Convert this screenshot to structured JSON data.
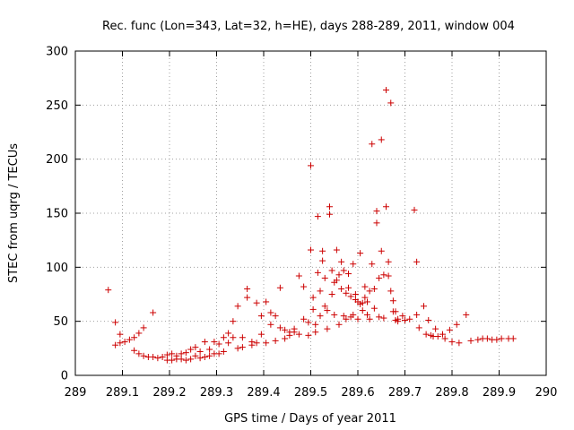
{
  "chart_data": {
    "type": "scatter",
    "title": "Rec. func (Lon=343, Lat=32, h=HE), days 288-289, 2011, window 004",
    "xlabel": "GPS time / Days of year 2011",
    "ylabel": "STEC from uqrg / TECUs",
    "xlim": [
      289,
      290
    ],
    "ylim": [
      0,
      300
    ],
    "xticks": [
      "289",
      "289.1",
      "289.2",
      "289.3",
      "289.4",
      "289.5",
      "289.6",
      "289.7",
      "289.8",
      "289.9",
      "290"
    ],
    "yticks": [
      "0",
      "50",
      "100",
      "150",
      "200",
      "250",
      "300"
    ],
    "grid": true,
    "marker": "+",
    "color": "#cc0000",
    "points": [
      [
        289.07,
        79
      ],
      [
        289.085,
        49
      ],
      [
        289.085,
        28
      ],
      [
        289.095,
        38
      ],
      [
        289.095,
        30
      ],
      [
        289.105,
        31
      ],
      [
        289.115,
        33
      ],
      [
        289.125,
        35
      ],
      [
        289.125,
        23
      ],
      [
        289.135,
        39
      ],
      [
        289.135,
        20
      ],
      [
        289.145,
        44
      ],
      [
        289.145,
        18
      ],
      [
        289.155,
        17
      ],
      [
        289.165,
        58
      ],
      [
        289.165,
        17
      ],
      [
        289.175,
        16
      ],
      [
        289.185,
        17
      ],
      [
        289.195,
        19
      ],
      [
        289.195,
        14
      ],
      [
        289.205,
        20
      ],
      [
        289.205,
        14
      ],
      [
        289.215,
        18
      ],
      [
        289.215,
        15
      ],
      [
        289.225,
        20
      ],
      [
        289.225,
        15
      ],
      [
        289.235,
        21
      ],
      [
        289.235,
        14
      ],
      [
        289.245,
        24
      ],
      [
        289.245,
        15
      ],
      [
        289.255,
        18
      ],
      [
        289.255,
        26
      ],
      [
        289.265,
        22
      ],
      [
        289.265,
        16
      ],
      [
        289.275,
        31
      ],
      [
        289.275,
        17
      ],
      [
        289.285,
        24
      ],
      [
        289.285,
        18
      ],
      [
        289.295,
        31
      ],
      [
        289.295,
        20
      ],
      [
        289.305,
        29
      ],
      [
        289.305,
        20
      ],
      [
        289.315,
        35
      ],
      [
        289.315,
        22
      ],
      [
        289.325,
        39
      ],
      [
        289.325,
        30
      ],
      [
        289.335,
        50
      ],
      [
        289.335,
        35
      ],
      [
        289.345,
        64
      ],
      [
        289.345,
        25
      ],
      [
        289.355,
        35
      ],
      [
        289.355,
        26
      ],
      [
        289.365,
        80
      ],
      [
        289.365,
        72
      ],
      [
        289.375,
        31
      ],
      [
        289.375,
        28
      ],
      [
        289.385,
        67
      ],
      [
        289.385,
        30
      ],
      [
        289.395,
        55
      ],
      [
        289.395,
        38
      ],
      [
        289.405,
        68
      ],
      [
        289.405,
        30
      ],
      [
        289.415,
        58
      ],
      [
        289.415,
        47
      ],
      [
        289.425,
        55
      ],
      [
        289.425,
        32
      ],
      [
        289.435,
        81
      ],
      [
        289.435,
        44
      ],
      [
        289.445,
        42
      ],
      [
        289.445,
        34
      ],
      [
        289.455,
        37
      ],
      [
        289.455,
        40
      ],
      [
        289.465,
        40
      ],
      [
        289.465,
        43
      ],
      [
        289.475,
        92
      ],
      [
        289.475,
        38
      ],
      [
        289.485,
        82
      ],
      [
        289.485,
        52
      ],
      [
        289.495,
        49
      ],
      [
        289.495,
        37
      ],
      [
        289.5,
        194
      ],
      [
        289.5,
        116
      ],
      [
        289.505,
        72
      ],
      [
        289.505,
        61
      ],
      [
        289.51,
        47
      ],
      [
        289.51,
        40
      ],
      [
        289.515,
        147
      ],
      [
        289.515,
        95
      ],
      [
        289.52,
        78
      ],
      [
        289.52,
        55
      ],
      [
        289.525,
        106
      ],
      [
        289.525,
        115
      ],
      [
        289.53,
        90
      ],
      [
        289.53,
        64
      ],
      [
        289.535,
        60
      ],
      [
        289.535,
        43
      ],
      [
        289.54,
        156
      ],
      [
        289.54,
        149
      ],
      [
        289.545,
        97
      ],
      [
        289.545,
        75
      ],
      [
        289.55,
        86
      ],
      [
        289.55,
        56
      ],
      [
        289.555,
        88
      ],
      [
        289.555,
        116
      ],
      [
        289.56,
        93
      ],
      [
        289.56,
        47
      ],
      [
        289.565,
        105
      ],
      [
        289.565,
        80
      ],
      [
        289.57,
        97
      ],
      [
        289.57,
        55
      ],
      [
        289.575,
        76
      ],
      [
        289.575,
        52
      ],
      [
        289.58,
        94
      ],
      [
        289.58,
        81
      ],
      [
        289.585,
        73
      ],
      [
        289.585,
        54
      ],
      [
        289.59,
        103
      ],
      [
        289.59,
        56
      ],
      [
        289.595,
        75
      ],
      [
        289.595,
        70
      ],
      [
        289.6,
        52
      ],
      [
        289.6,
        68
      ],
      [
        289.605,
        113
      ],
      [
        289.605,
        66
      ],
      [
        289.61,
        67
      ],
      [
        289.61,
        60
      ],
      [
        289.615,
        82
      ],
      [
        289.615,
        72
      ],
      [
        289.62,
        68
      ],
      [
        289.62,
        56
      ],
      [
        289.625,
        78
      ],
      [
        289.625,
        52
      ],
      [
        289.63,
        214
      ],
      [
        289.63,
        103
      ],
      [
        289.635,
        80
      ],
      [
        289.635,
        62
      ],
      [
        289.64,
        152
      ],
      [
        289.64,
        141
      ],
      [
        289.645,
        90
      ],
      [
        289.645,
        54
      ],
      [
        289.65,
        218
      ],
      [
        289.65,
        115
      ],
      [
        289.655,
        93
      ],
      [
        289.655,
        53
      ],
      [
        289.66,
        264
      ],
      [
        289.66,
        156
      ],
      [
        289.665,
        105
      ],
      [
        289.665,
        92
      ],
      [
        289.67,
        252
      ],
      [
        289.67,
        78
      ],
      [
        289.675,
        69
      ],
      [
        289.675,
        59
      ],
      [
        289.68,
        59
      ],
      [
        289.68,
        51
      ],
      [
        289.685,
        50
      ],
      [
        289.685,
        52
      ],
      [
        289.695,
        55
      ],
      [
        289.7,
        51
      ],
      [
        289.71,
        52
      ],
      [
        289.72,
        153
      ],
      [
        289.725,
        105
      ],
      [
        289.725,
        56
      ],
      [
        289.73,
        44
      ],
      [
        289.74,
        64
      ],
      [
        289.745,
        38
      ],
      [
        289.75,
        51
      ],
      [
        289.755,
        37
      ],
      [
        289.76,
        36
      ],
      [
        289.765,
        43
      ],
      [
        289.77,
        36
      ],
      [
        289.78,
        38
      ],
      [
        289.785,
        34
      ],
      [
        289.795,
        42
      ],
      [
        289.8,
        31
      ],
      [
        289.81,
        47
      ],
      [
        289.815,
        30
      ],
      [
        289.83,
        56
      ],
      [
        289.84,
        32
      ],
      [
        289.855,
        33
      ],
      [
        289.865,
        34
      ],
      [
        289.875,
        34
      ],
      [
        289.885,
        33
      ],
      [
        289.895,
        33
      ],
      [
        289.905,
        34
      ],
      [
        289.92,
        34
      ],
      [
        289.93,
        34
      ]
    ]
  }
}
